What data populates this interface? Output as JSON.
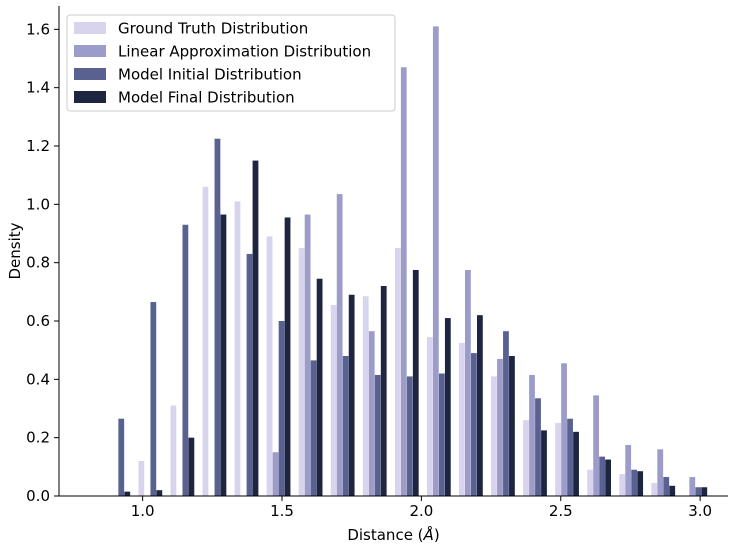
{
  "chart_data": {
    "type": "bar",
    "xlabel": "Distance (",
    "xlabel_unit": "Å",
    "xlabel_close": ")",
    "ylabel": "Density",
    "xlim": [
      0.7,
      3.1
    ],
    "ylim": [
      0,
      1.68
    ],
    "xticks": [
      1.0,
      1.5,
      2.0,
      2.5,
      3.0
    ],
    "xtick_labels": [
      "1.0",
      "1.5",
      "2.0",
      "2.5",
      "3.0"
    ],
    "yticks": [
      0.0,
      0.2,
      0.4,
      0.6,
      0.8,
      1.0,
      1.2,
      1.4,
      1.6
    ],
    "ytick_labels": [
      "0.0",
      "0.2",
      "0.4",
      "0.6",
      "0.8",
      "1.0",
      "1.2",
      "1.4",
      "1.6"
    ],
    "grid": false,
    "legend_position": "top-left",
    "bin_centers": [
      0.913,
      1.028,
      1.143,
      1.258,
      1.373,
      1.488,
      1.603,
      1.718,
      1.833,
      1.948,
      2.063,
      2.178,
      2.293,
      2.408,
      2.523,
      2.638,
      2.753,
      2.868,
      2.983
    ],
    "series": [
      {
        "name": "Ground Truth Distribution",
        "color": "#d9d4ee",
        "values": [
          0.0,
          0.12,
          0.31,
          1.06,
          1.01,
          0.89,
          0.85,
          0.655,
          0.685,
          0.85,
          0.545,
          0.525,
          0.41,
          0.26,
          0.25,
          0.09,
          0.075,
          0.045,
          0.0
        ]
      },
      {
        "name": "Linear Approximation Distribution",
        "color": "#9c9ccb",
        "values": [
          0.0,
          0.0,
          0.0,
          0.0,
          0.0,
          0.15,
          0.965,
          1.035,
          0.565,
          1.47,
          1.61,
          0.775,
          0.47,
          0.415,
          0.455,
          0.345,
          0.175,
          0.16,
          0.065
        ]
      },
      {
        "name": "Model Initial Distribution",
        "color": "#596190",
        "values": [
          0.265,
          0.665,
          0.93,
          1.225,
          0.83,
          0.6,
          0.465,
          0.48,
          0.415,
          0.41,
          0.42,
          0.49,
          0.565,
          0.335,
          0.265,
          0.135,
          0.09,
          0.065,
          0.03
        ]
      },
      {
        "name": "Model Final Distribution",
        "color": "#1d2541",
        "values": [
          0.015,
          0.02,
          0.2,
          0.965,
          1.15,
          0.955,
          0.745,
          0.69,
          0.72,
          0.775,
          0.61,
          0.62,
          0.48,
          0.225,
          0.22,
          0.125,
          0.085,
          0.035,
          0.03
        ]
      }
    ]
  }
}
